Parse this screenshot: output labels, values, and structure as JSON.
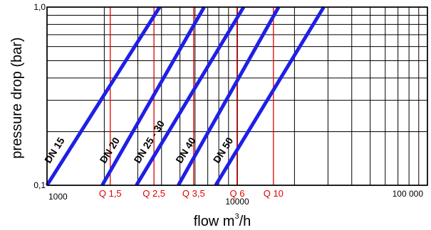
{
  "chart_data": {
    "type": "line",
    "xlabel": "flow m³/h",
    "xlabel_main": "flow m",
    "xlabel_sup": "3",
    "xlabel_tail": "/h",
    "ylabel": "pressure drop (bar)",
    "x_scale": "log",
    "y_scale": "log",
    "xlim": [
      1000,
      100000
    ],
    "ylim": [
      0.1,
      1.0
    ],
    "x_tick_labels": [
      {
        "value": 1000,
        "label": "1000"
      },
      {
        "value": 10000,
        "label": "10000"
      },
      {
        "value": 100000,
        "label": "100 000"
      }
    ],
    "y_tick_labels": [
      {
        "value": 0.1,
        "label": "0,1"
      },
      {
        "value": 1.0,
        "label": "1,0"
      }
    ],
    "grid": true,
    "series_color": "#1f1fe6",
    "series": [
      {
        "name": "DN 15",
        "x": [
          1000,
          3910
        ],
        "y": [
          0.1,
          1.0
        ]
      },
      {
        "name": "DN 20",
        "x": [
          1950,
          6700
        ],
        "y": [
          0.1,
          1.0
        ]
      },
      {
        "name": "DN 25 - 30",
        "x": [
          2950,
          10800
        ],
        "y": [
          0.1,
          1.0
        ]
      },
      {
        "name": "DN 40",
        "x": [
          4900,
          16500
        ],
        "y": [
          0.1,
          1.0
        ]
      },
      {
        "name": "DN 50",
        "x": [
          7700,
          28500
        ],
        "y": [
          0.1,
          1.0
        ]
      }
    ],
    "reference_lines_color": "#e00000",
    "reference_lines": [
      {
        "label": "Q 1,5",
        "x": 2150
      },
      {
        "label": "Q 2,5",
        "x": 3650
      },
      {
        "label": "Q 3,5",
        "x": 5900
      },
      {
        "label": "Q 6",
        "x": 10000
      },
      {
        "label": "Q 10",
        "x": 15500
      }
    ]
  }
}
